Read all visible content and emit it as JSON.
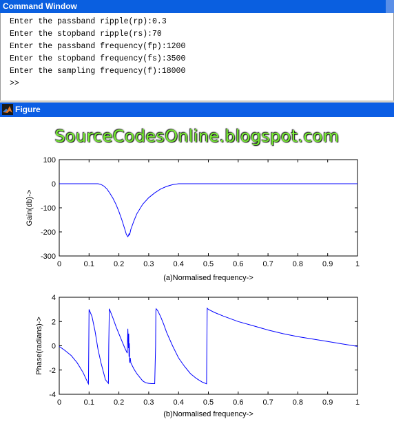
{
  "command_window": {
    "title": "Command Window",
    "lines": [
      "Enter the passband ripple(rp):0.3",
      "Enter the stopband ripple(rs):70",
      "Enter the passband frequency(fp):1200",
      "Enter the stopband frequency(fs):3500",
      "Enter the sampling frequency(f):18000",
      ">>"
    ]
  },
  "figure_window": {
    "title": "Figure",
    "icon": "matlab-logo-icon",
    "watermark": "SourceCodesOnline.blogspot.com"
  },
  "chart_data": [
    {
      "type": "line",
      "title": "",
      "xlabel": "(a)Normalised frequency->",
      "ylabel": "Gain(db)->",
      "xlim": [
        0,
        1
      ],
      "ylim": [
        -300,
        100
      ],
      "xticks": [
        "0",
        "0.1",
        "0.2",
        "0.3",
        "0.4",
        "0.5",
        "0.6",
        "0.7",
        "0.8",
        "0.9",
        "1"
      ],
      "yticks": [
        "100",
        "0",
        "-100",
        "-200",
        "-300"
      ],
      "grid": false,
      "color": "#0000ff",
      "x": [
        0,
        0.12,
        0.13,
        0.14,
        0.15,
        0.16,
        0.17,
        0.18,
        0.19,
        0.2,
        0.21,
        0.22,
        0.225,
        0.23,
        0.232,
        0.234,
        0.236,
        0.24,
        0.25,
        0.26,
        0.28,
        0.3,
        0.32,
        0.34,
        0.36,
        0.38,
        0.4,
        0.5,
        0.6,
        0.7,
        0.8,
        0.9,
        1.0
      ],
      "y": [
        0,
        0,
        0,
        -3,
        -10,
        -22,
        -40,
        -60,
        -85,
        -115,
        -150,
        -190,
        -210,
        -220,
        -215,
        -208,
        -212,
        -190,
        -155,
        -125,
        -85,
        -58,
        -38,
        -22,
        -11,
        -4,
        0,
        0,
        0,
        0,
        0,
        0,
        0
      ]
    },
    {
      "type": "line",
      "title": "",
      "xlabel": "(b)Normalised frequency->",
      "ylabel": "Phase(radians)->",
      "xlim": [
        0,
        1
      ],
      "ylim": [
        -4,
        4
      ],
      "xticks": [
        "0",
        "0.1",
        "0.2",
        "0.3",
        "0.4",
        "0.5",
        "0.6",
        "0.7",
        "0.8",
        "0.9",
        "1"
      ],
      "yticks": [
        "4",
        "2",
        "0",
        "-2",
        "-4"
      ],
      "grid": false,
      "color": "#0000ff",
      "x": [
        0,
        0.02,
        0.04,
        0.06,
        0.08,
        0.095,
        0.098,
        0.099,
        0.1,
        0.11,
        0.12,
        0.13,
        0.14,
        0.155,
        0.165,
        0.166,
        0.168,
        0.18,
        0.19,
        0.2,
        0.21,
        0.22,
        0.228,
        0.23,
        0.232,
        0.233,
        0.234,
        0.235,
        0.236,
        0.238,
        0.24,
        0.25,
        0.26,
        0.27,
        0.28,
        0.29,
        0.3,
        0.31,
        0.32,
        0.323,
        0.324,
        0.325,
        0.33,
        0.34,
        0.35,
        0.36,
        0.38,
        0.4,
        0.42,
        0.44,
        0.46,
        0.48,
        0.494,
        0.495,
        0.496,
        0.5,
        0.52,
        0.55,
        0.6,
        0.65,
        0.7,
        0.75,
        0.8,
        0.85,
        0.9,
        0.95,
        1.0
      ],
      "y": [
        -0.05,
        -0.4,
        -0.8,
        -1.4,
        -2.2,
        -3.0,
        -3.14,
        0.0,
        3.0,
        2.4,
        1.2,
        -0.3,
        -1.4,
        -2.8,
        -3.1,
        0.0,
        3.05,
        2.3,
        1.6,
        1.0,
        0.4,
        -0.2,
        -0.6,
        1.4,
        -0.2,
        1.0,
        -0.9,
        0.2,
        -1.4,
        -1.0,
        -1.4,
        -1.9,
        -2.3,
        -2.6,
        -2.9,
        -3.05,
        -3.1,
        -3.12,
        -3.12,
        0.0,
        2.9,
        3.05,
        2.9,
        2.4,
        1.8,
        1.1,
        0.0,
        -1.0,
        -1.7,
        -2.3,
        -2.7,
        -3.0,
        -3.14,
        0.0,
        3.1,
        3.0,
        2.75,
        2.45,
        2.0,
        1.65,
        1.3,
        1.0,
        0.75,
        0.55,
        0.35,
        0.15,
        -0.05
      ]
    }
  ]
}
